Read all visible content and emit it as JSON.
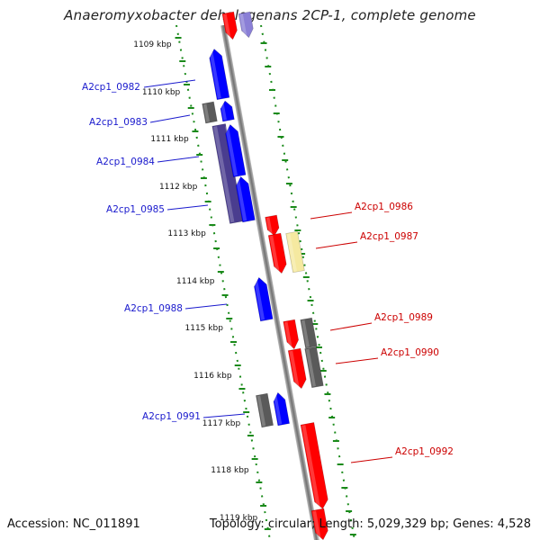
{
  "title": "Anaeromyxobacter dehalogenans 2CP-1, complete genome",
  "footer": {
    "accession": "Accession: NC_011891",
    "topology": "Topology: circular; Length: 5,029,329 bp; Genes: 4,528"
  },
  "ruler": [
    {
      "label": "1109 kbp"
    },
    {
      "label": "1110 kbp"
    },
    {
      "label": "1111 kbp"
    },
    {
      "label": "1112 kbp"
    },
    {
      "label": "1113 kbp"
    },
    {
      "label": "1114 kbp"
    },
    {
      "label": "1115 kbp"
    },
    {
      "label": "1116 kbp"
    },
    {
      "label": "1117 kbp"
    },
    {
      "label": "1118 kbp"
    },
    {
      "label": "1119 kbp"
    }
  ],
  "gene_labels": [
    {
      "text": "A2cp1_0982",
      "strand": "left"
    },
    {
      "text": "A2cp1_0983",
      "strand": "left"
    },
    {
      "text": "A2cp1_0984",
      "strand": "left"
    },
    {
      "text": "A2cp1_0985",
      "strand": "left"
    },
    {
      "text": "A2cp1_0988",
      "strand": "left"
    },
    {
      "text": "A2cp1_0991",
      "strand": "left"
    },
    {
      "text": "A2cp1_0986",
      "strand": "right"
    },
    {
      "text": "A2cp1_0987",
      "strand": "right"
    },
    {
      "text": "A2cp1_0989",
      "strand": "right"
    },
    {
      "text": "A2cp1_0990",
      "strand": "right"
    },
    {
      "text": "A2cp1_0992",
      "strand": "right"
    }
  ],
  "colors": {
    "forward_gene": "#ff0000",
    "reverse_gene": "#0000ff",
    "reverse_gene_dark": "#4a3d8f",
    "reverse_gene_light": "#8a7fd6",
    "other_feature": "#5a5a5a",
    "highlight_feature": "#f5e9a0",
    "backbone": "#8a8a8a",
    "tick": "#1a8a1a",
    "left_label": "#1a1acd",
    "right_label": "#cc0000"
  }
}
